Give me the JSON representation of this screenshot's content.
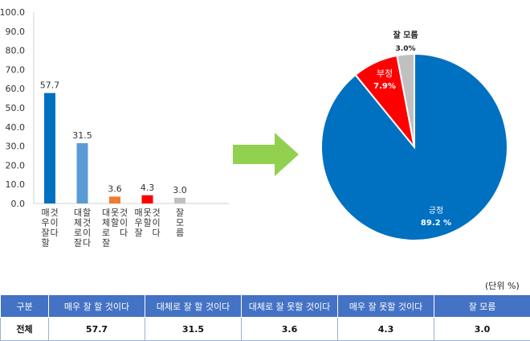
{
  "chart_data": [
    {
      "type": "bar",
      "categories": [
        "매우 잘 할 것이다",
        "대체로 잘 할 것이다",
        "대체로 잘 못할 것이다",
        "매우 잘 못할 것이다",
        "잘 모름"
      ],
      "values": [
        57.7,
        31.5,
        3.6,
        4.3,
        3.0
      ],
      "colors": [
        "#0070c0",
        "#5b9bd5",
        "#ed7d31",
        "#ff0000",
        "#c0c0c0"
      ],
      "yticks": [
        "0.0",
        "10.0",
        "20.0",
        "30.0",
        "40.0",
        "50.0",
        "60.0",
        "70.0",
        "80.0",
        "90.0",
        "100.0"
      ],
      "ylim": [
        0,
        100
      ],
      "grid": false
    },
    {
      "type": "pie",
      "labels": [
        "긍정",
        "부정",
        "잘 모름"
      ],
      "values": [
        89.2,
        7.9,
        3.0
      ],
      "value_labels": [
        "89.2 %",
        "7.9%",
        "3.0%"
      ],
      "colors": [
        "#0070c0",
        "#ff0000",
        "#c0c0c0"
      ]
    }
  ],
  "unit": "(단위 %)",
  "table": {
    "headers": [
      "구분",
      "매우 잘 할 것이다",
      "대체로 잘 할 것이다",
      "대체로 잘 못할 것이다",
      "매우 잘 못할 것이다",
      "잘 모름"
    ],
    "rows": [
      [
        "전체",
        "57.7",
        "31.5",
        "3.6",
        "4.3",
        "3.0"
      ]
    ]
  },
  "colors": {
    "arrow": "#92d050",
    "header_bg": "#4472c4"
  }
}
